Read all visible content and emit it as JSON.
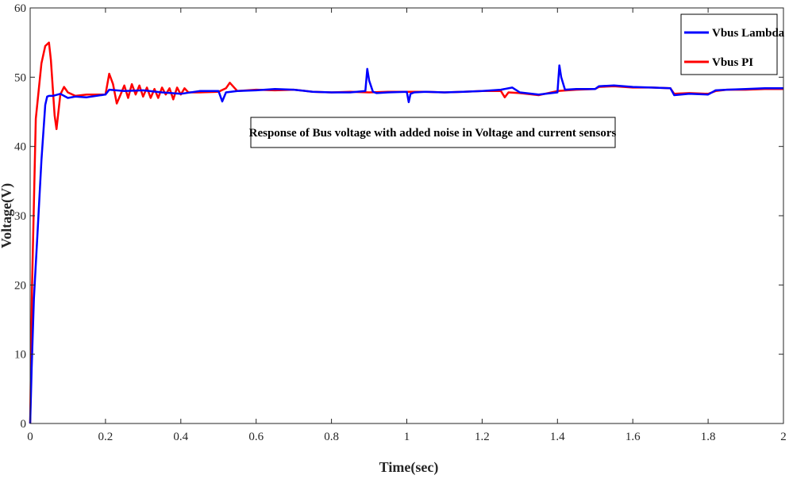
{
  "chart_data": {
    "type": "line",
    "title": "",
    "xlabel": "Time(sec)",
    "ylabel": "Voltage(V)",
    "xlim": [
      0,
      2
    ],
    "ylim": [
      0,
      60
    ],
    "xticks": [
      0,
      0.2,
      0.4,
      0.6,
      0.8,
      1,
      1.2,
      1.4,
      1.6,
      1.8,
      2
    ],
    "xtick_labels": [
      "0",
      "0.2",
      "0.4",
      "0.6",
      "0.8",
      "1",
      "1.2",
      "1.4",
      "1.6",
      "1.8",
      "2"
    ],
    "yticks": [
      0,
      10,
      20,
      30,
      40,
      50,
      60
    ],
    "ytick_labels": [
      "0",
      "10",
      "20",
      "30",
      "40",
      "50",
      "60"
    ],
    "grid": false,
    "legend_position": "top-right",
    "annotation": "Response of Bus voltage with added noise in Voltage and current sensors",
    "series": [
      {
        "name": "Vbus Lambda",
        "color": "#0000ff",
        "x": [
          0,
          0.004,
          0.01,
          0.02,
          0.03,
          0.04,
          0.045,
          0.05,
          0.06,
          0.08,
          0.1,
          0.12,
          0.15,
          0.2,
          0.21,
          0.25,
          0.3,
          0.35,
          0.4,
          0.45,
          0.5,
          0.51,
          0.52,
          0.55,
          0.6,
          0.65,
          0.7,
          0.75,
          0.8,
          0.85,
          0.89,
          0.895,
          0.9,
          0.91,
          0.92,
          0.95,
          1.0,
          1.005,
          1.01,
          1.02,
          1.05,
          1.1,
          1.15,
          1.2,
          1.25,
          1.28,
          1.3,
          1.35,
          1.4,
          1.405,
          1.41,
          1.42,
          1.45,
          1.5,
          1.51,
          1.55,
          1.6,
          1.65,
          1.7,
          1.71,
          1.75,
          1.8,
          1.82,
          1.85,
          1.9,
          1.95,
          2.0
        ],
        "y": [
          0,
          8,
          18,
          28,
          38,
          46,
          47.2,
          47.3,
          47.3,
          47.6,
          47.0,
          47.2,
          47.1,
          47.5,
          48.2,
          48.0,
          48.1,
          47.8,
          47.6,
          48.0,
          48.0,
          46.5,
          47.8,
          48.0,
          48.1,
          48.3,
          48.2,
          47.9,
          47.8,
          47.8,
          48.0,
          51.2,
          49.5,
          47.9,
          47.7,
          47.8,
          47.9,
          46.4,
          47.6,
          47.8,
          47.9,
          47.8,
          47.9,
          48.0,
          48.2,
          48.5,
          47.8,
          47.5,
          47.8,
          51.7,
          50.0,
          48.2,
          48.3,
          48.3,
          48.7,
          48.8,
          48.6,
          48.5,
          48.4,
          47.4,
          47.6,
          47.5,
          48.1,
          48.2,
          48.3,
          48.4,
          48.4
        ]
      },
      {
        "name": "Vbus PI",
        "color": "#ff0000",
        "x": [
          0,
          0.005,
          0.015,
          0.03,
          0.04,
          0.05,
          0.055,
          0.065,
          0.07,
          0.08,
          0.09,
          0.1,
          0.12,
          0.15,
          0.2,
          0.21,
          0.22,
          0.23,
          0.24,
          0.25,
          0.26,
          0.27,
          0.28,
          0.29,
          0.3,
          0.31,
          0.32,
          0.33,
          0.34,
          0.35,
          0.36,
          0.37,
          0.38,
          0.39,
          0.4,
          0.41,
          0.42,
          0.45,
          0.5,
          0.52,
          0.53,
          0.55,
          0.6,
          0.65,
          0.7,
          0.75,
          0.8,
          0.85,
          0.9,
          0.95,
          1.0,
          1.05,
          1.1,
          1.15,
          1.2,
          1.25,
          1.26,
          1.27,
          1.3,
          1.35,
          1.4,
          1.45,
          1.5,
          1.51,
          1.55,
          1.6,
          1.65,
          1.7,
          1.71,
          1.75,
          1.8,
          1.82,
          1.85,
          1.9,
          1.95,
          2.0
        ],
        "y": [
          0,
          20,
          44,
          52,
          54.5,
          55,
          52.5,
          44.5,
          42.5,
          47.5,
          48.6,
          47.8,
          47.3,
          47.5,
          47.5,
          50.5,
          49.0,
          46.2,
          47.5,
          48.8,
          47.0,
          49.0,
          47.5,
          48.8,
          47.2,
          48.5,
          47.0,
          48.3,
          47.0,
          48.5,
          47.5,
          48.4,
          46.8,
          48.5,
          47.5,
          48.4,
          47.8,
          47.8,
          47.9,
          48.4,
          49.2,
          48.0,
          48.2,
          48.1,
          48.2,
          47.9,
          47.8,
          47.9,
          47.8,
          47.9,
          47.9,
          47.9,
          47.8,
          47.9,
          48.0,
          48.0,
          47.1,
          47.8,
          47.7,
          47.4,
          48.0,
          48.2,
          48.3,
          48.6,
          48.7,
          48.5,
          48.5,
          48.4,
          47.6,
          47.7,
          47.6,
          48.0,
          48.2,
          48.2,
          48.3,
          48.3
        ]
      }
    ]
  }
}
